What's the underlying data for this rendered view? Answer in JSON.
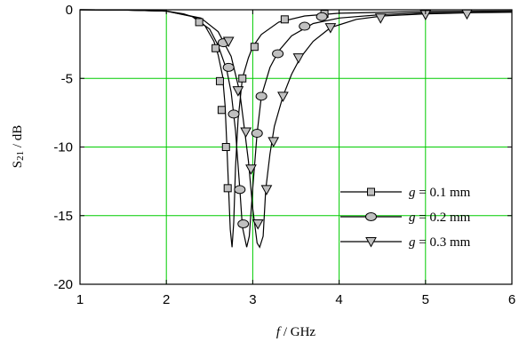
{
  "chart_data": {
    "type": "line",
    "xlabel": {
      "italic": "f",
      "rest": " / GHz"
    },
    "ylabel": {
      "main": "S",
      "sub": "21",
      "rest": " / dB"
    },
    "xlim": [
      1,
      6
    ],
    "ylim": [
      -20,
      0
    ],
    "xticks": [
      1,
      2,
      3,
      4,
      5,
      6
    ],
    "yticks": [
      0,
      -5,
      -10,
      -15,
      -20
    ],
    "xtick_labels": [
      "1",
      "2",
      "3",
      "4",
      "5",
      "6"
    ],
    "ytick_labels": [
      "0",
      "-5",
      "-10",
      "-15",
      "-20"
    ],
    "grid": true,
    "grid_color": "#00cc00",
    "marker_fill": "#c0c0c0",
    "legend_position": "lower-right",
    "series": [
      {
        "name": "g = 0.1 mm",
        "legend": {
          "var": "g",
          "value": " = 0.1 mm"
        },
        "marker": "square",
        "curve": [
          [
            1.0,
            0
          ],
          [
            1.5,
            -0.02
          ],
          [
            2.0,
            -0.1
          ],
          [
            2.2,
            -0.3
          ],
          [
            2.35,
            -0.6
          ],
          [
            2.45,
            -1.2
          ],
          [
            2.55,
            -2.3
          ],
          [
            2.6,
            -3.3
          ],
          [
            2.65,
            -4.8
          ],
          [
            2.68,
            -7.0
          ],
          [
            2.7,
            -9.8
          ],
          [
            2.72,
            -13.0
          ],
          [
            2.74,
            -16.0
          ],
          [
            2.76,
            -17.3
          ],
          [
            2.78,
            -15.5
          ],
          [
            2.8,
            -11.5
          ],
          [
            2.83,
            -8.0
          ],
          [
            2.88,
            -5.0
          ],
          [
            2.95,
            -3.5
          ],
          [
            3.0,
            -2.7
          ],
          [
            3.1,
            -1.8
          ],
          [
            3.3,
            -0.9
          ],
          [
            3.6,
            -0.45
          ],
          [
            4.0,
            -0.25
          ],
          [
            5.0,
            -0.12
          ],
          [
            6.0,
            -0.08
          ]
        ],
        "markers": [
          [
            2.38,
            -0.9
          ],
          [
            2.57,
            -2.8
          ],
          [
            2.62,
            -5.2
          ],
          [
            2.64,
            -7.3
          ],
          [
            2.69,
            -10.0
          ],
          [
            2.71,
            -13.0
          ],
          [
            2.88,
            -5.0
          ],
          [
            3.02,
            -2.7
          ],
          [
            3.37,
            -0.7
          ],
          [
            3.83,
            -0.3
          ]
        ]
      },
      {
        "name": "g = 0.2 mm",
        "legend": {
          "var": "g",
          "value": " = 0.2 mm"
        },
        "marker": "circle",
        "curve": [
          [
            1.0,
            0
          ],
          [
            1.5,
            -0.02
          ],
          [
            2.0,
            -0.1
          ],
          [
            2.3,
            -0.5
          ],
          [
            2.5,
            -1.4
          ],
          [
            2.6,
            -2.6
          ],
          [
            2.7,
            -4.4
          ],
          [
            2.75,
            -6.0
          ],
          [
            2.8,
            -8.8
          ],
          [
            2.85,
            -13.0
          ],
          [
            2.88,
            -15.8
          ],
          [
            2.93,
            -17.3
          ],
          [
            2.96,
            -16.5
          ],
          [
            3.0,
            -13.0
          ],
          [
            3.05,
            -9.0
          ],
          [
            3.1,
            -6.3
          ],
          [
            3.2,
            -4.2
          ],
          [
            3.3,
            -3.0
          ],
          [
            3.45,
            -1.9
          ],
          [
            3.7,
            -1.0
          ],
          [
            4.0,
            -0.6
          ],
          [
            4.5,
            -0.35
          ],
          [
            5.0,
            -0.22
          ],
          [
            6.0,
            -0.15
          ]
        ],
        "markers": [
          [
            2.66,
            -2.4
          ],
          [
            2.72,
            -4.2
          ],
          [
            2.78,
            -7.6
          ],
          [
            2.85,
            -13.1
          ],
          [
            2.89,
            -15.6
          ],
          [
            3.05,
            -9.0
          ],
          [
            3.1,
            -6.3
          ],
          [
            3.29,
            -3.2
          ],
          [
            3.6,
            -1.2
          ],
          [
            3.8,
            -0.5
          ]
        ]
      },
      {
        "name": "g = 0.3 mm",
        "legend": {
          "var": "g",
          "value": " = 0.3 mm"
        },
        "marker": "triangle",
        "curve": [
          [
            1.0,
            0
          ],
          [
            1.5,
            -0.02
          ],
          [
            2.0,
            -0.1
          ],
          [
            2.4,
            -0.6
          ],
          [
            2.6,
            -1.6
          ],
          [
            2.75,
            -3.4
          ],
          [
            2.85,
            -6.0
          ],
          [
            2.9,
            -8.5
          ],
          [
            2.95,
            -11.0
          ],
          [
            3.0,
            -14.5
          ],
          [
            3.05,
            -17.0
          ],
          [
            3.08,
            -17.3
          ],
          [
            3.12,
            -16.5
          ],
          [
            3.15,
            -13.1
          ],
          [
            3.2,
            -10.5
          ],
          [
            3.25,
            -8.5
          ],
          [
            3.35,
            -6.3
          ],
          [
            3.45,
            -4.7
          ],
          [
            3.55,
            -3.5
          ],
          [
            3.7,
            -2.3
          ],
          [
            3.9,
            -1.3
          ],
          [
            4.2,
            -0.7
          ],
          [
            4.5,
            -0.45
          ],
          [
            5.0,
            -0.3
          ],
          [
            5.5,
            -0.22
          ],
          [
            6.0,
            -0.18
          ]
        ],
        "markers": [
          [
            2.72,
            -2.3
          ],
          [
            2.83,
            -5.9
          ],
          [
            2.92,
            -8.9
          ],
          [
            2.98,
            -11.6
          ],
          [
            3.06,
            -15.6
          ],
          [
            3.16,
            -13.1
          ],
          [
            3.24,
            -9.6
          ],
          [
            3.35,
            -6.3
          ],
          [
            3.53,
            -3.5
          ],
          [
            3.9,
            -1.3
          ],
          [
            4.48,
            -0.6
          ],
          [
            5.0,
            -0.35
          ],
          [
            5.48,
            -0.3
          ]
        ]
      }
    ]
  }
}
